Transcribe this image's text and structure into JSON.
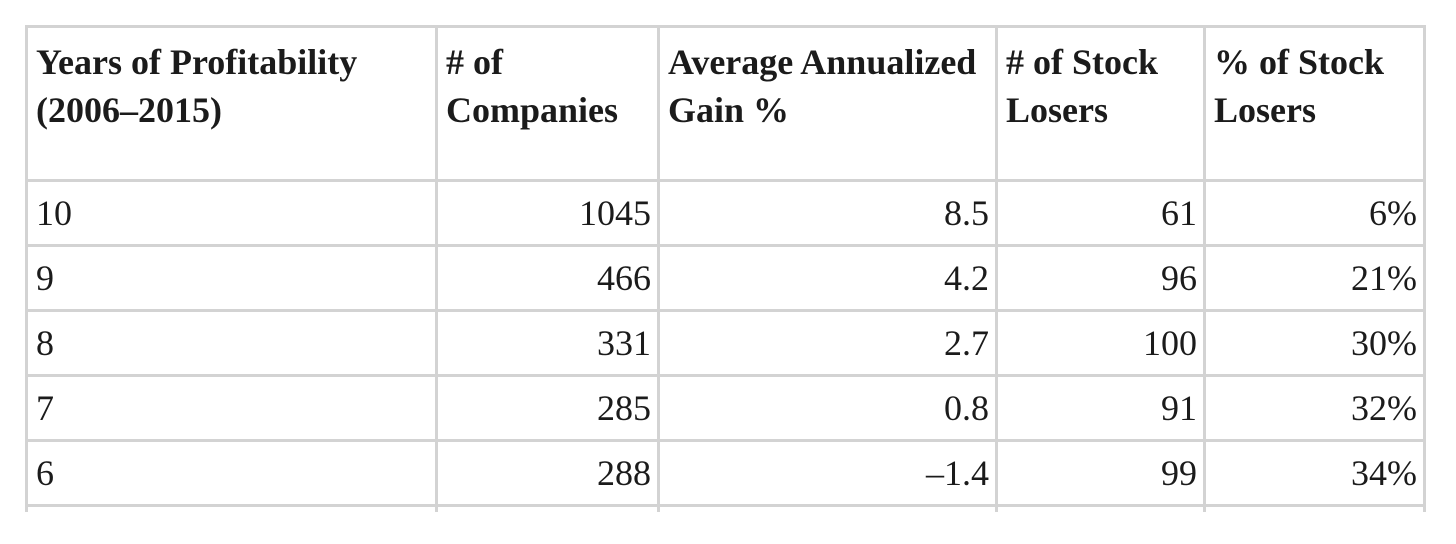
{
  "chart_data": {
    "type": "table",
    "columns": [
      "Years of Profitability (2006–2015)",
      "# of Companies",
      "Average Annualized Gain %",
      "# of Stock Losers",
      "% of Stock Losers"
    ],
    "rows": [
      [
        "10",
        "1045",
        "8.5",
        "61",
        "6%"
      ],
      [
        "9",
        "466",
        "4.2",
        "96",
        "21%"
      ],
      [
        "8",
        "331",
        "2.7",
        "100",
        "30%"
      ],
      [
        "7",
        "285",
        "0.8",
        "91",
        "32%"
      ],
      [
        "6",
        "288",
        "–1.4",
        "99",
        "34%"
      ]
    ]
  }
}
